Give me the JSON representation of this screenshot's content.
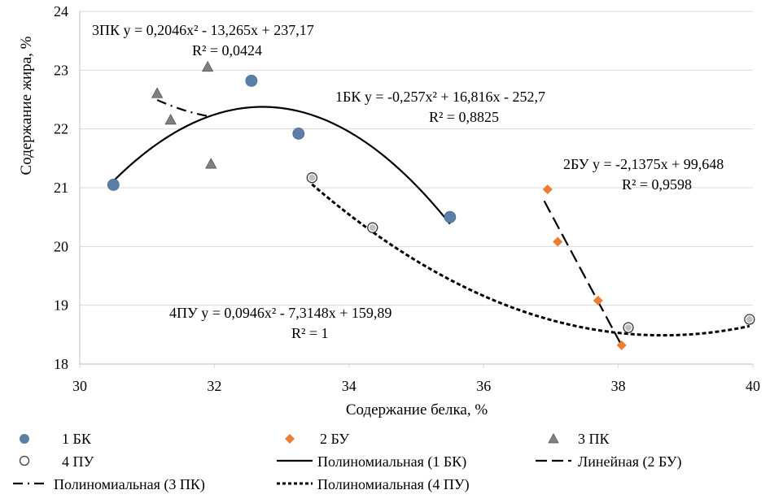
{
  "chart_data": {
    "type": "scatter",
    "xlabel": "Содержание белка, %",
    "ylabel": "Содержание жира, %",
    "xlim": [
      30,
      40
    ],
    "ylim": [
      18,
      24
    ],
    "x_ticks": [
      "30",
      "32",
      "34",
      "36",
      "38",
      "40"
    ],
    "y_ticks": [
      "18",
      "19",
      "20",
      "21",
      "22",
      "23",
      "24"
    ],
    "grid": "horizontal",
    "series": [
      {
        "name": "1 БК",
        "marker": "circle",
        "color": "#5b7fa6",
        "points": [
          [
            30.5,
            21.05
          ],
          [
            32.55,
            22.82
          ],
          [
            33.25,
            21.92
          ],
          [
            35.5,
            20.5
          ]
        ]
      },
      {
        "name": "2 БУ",
        "marker": "diamond",
        "color": "#ed7d31",
        "points": [
          [
            36.95,
            20.97
          ],
          [
            37.1,
            20.08
          ],
          [
            37.7,
            19.08
          ],
          [
            38.05,
            18.32
          ]
        ]
      },
      {
        "name": "3 ПК",
        "marker": "triangle",
        "color": "#808080",
        "points": [
          [
            31.15,
            22.6
          ],
          [
            31.35,
            22.15
          ],
          [
            31.9,
            23.05
          ],
          [
            31.95,
            21.4
          ]
        ]
      },
      {
        "name": "4 ПУ",
        "marker": "hollow-circle",
        "color": "#bfbfbf",
        "points": [
          [
            33.45,
            21.17
          ],
          [
            34.35,
            20.32
          ],
          [
            38.15,
            18.62
          ],
          [
            39.95,
            18.76
          ]
        ]
      }
    ],
    "trendlines": [
      {
        "name": "Полиномиальная (1 БК)",
        "kind": "poly2",
        "coef": [
          -0.257,
          16.816,
          -252.7
        ],
        "x_range": [
          30.5,
          35.5
        ],
        "style": "solid",
        "equation": "1БК y = -0,257x² + 16,816x - 252,7",
        "r2": "R² = 0,8825"
      },
      {
        "name": "Линейная (2 БУ)",
        "kind": "linear",
        "coef": [
          -2.1375,
          99.648
        ],
        "x_range": [
          36.9,
          38.05
        ],
        "style": "long-dash",
        "equation": "2БУ y = -2,1375x + 99,648",
        "r2": "R² = 0,9598"
      },
      {
        "name": "Полиномиальная (3 ПК)",
        "kind": "poly2",
        "coef": [
          0.2046,
          -13.265,
          237.17
        ],
        "x_range": [
          31.15,
          31.95
        ],
        "style": "dash-dot",
        "equation": "3ПК y = 0,2046x² - 13,265x + 237,17",
        "r2": "R² = 0,0424"
      },
      {
        "name": "Полиномиальная (4 ПУ)",
        "kind": "poly2",
        "coef": [
          0.0946,
          -7.3148,
          159.89
        ],
        "x_range": [
          33.45,
          39.95
        ],
        "style": "dotted",
        "equation": "4ПУ y = 0,0946x² - 7,3148x + 159,89",
        "r2": "R² = 1"
      }
    ]
  }
}
